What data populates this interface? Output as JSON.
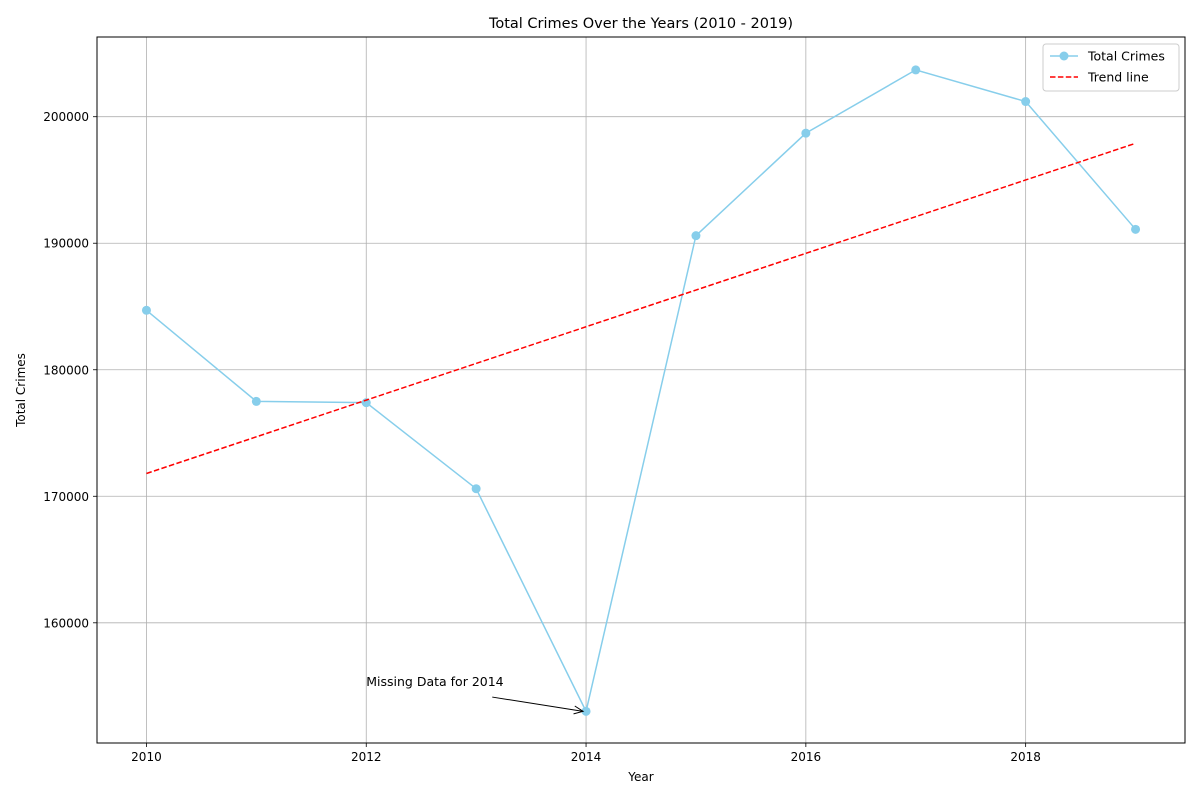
{
  "chart_data": {
    "type": "line",
    "title": "Total Crimes Over the Years (2010 - 2019)",
    "xlabel": "Year",
    "ylabel": "Total Crimes",
    "x": [
      2010,
      2011,
      2012,
      2013,
      2014,
      2015,
      2016,
      2017,
      2018,
      2019
    ],
    "xlim": [
      2009.55,
      2019.45
    ],
    "ylim": [
      150500,
      206300
    ],
    "x_ticks": [
      2010,
      2012,
      2014,
      2016,
      2018
    ],
    "y_ticks": [
      160000,
      170000,
      180000,
      190000,
      200000
    ],
    "grid": true,
    "legend_position": "top-right",
    "series": [
      {
        "name": "Total Crimes",
        "style": "line-with-markers",
        "color": "#87ceeb",
        "values": [
          184700,
          177500,
          177400,
          170600,
          153000,
          190600,
          198700,
          203700,
          201200,
          191100
        ]
      },
      {
        "name": "Trend line",
        "style": "dashed",
        "color": "#ff0000",
        "values": [
          171800,
          174700,
          177600,
          180500,
          183400,
          186300,
          189200,
          192100,
          195000,
          197900
        ]
      }
    ],
    "annotations": [
      {
        "text": "Missing Data for 2014",
        "text_x": 2012,
        "text_y": 155000,
        "arrow_to_x": 2014,
        "arrow_to_y": 153000
      }
    ]
  }
}
